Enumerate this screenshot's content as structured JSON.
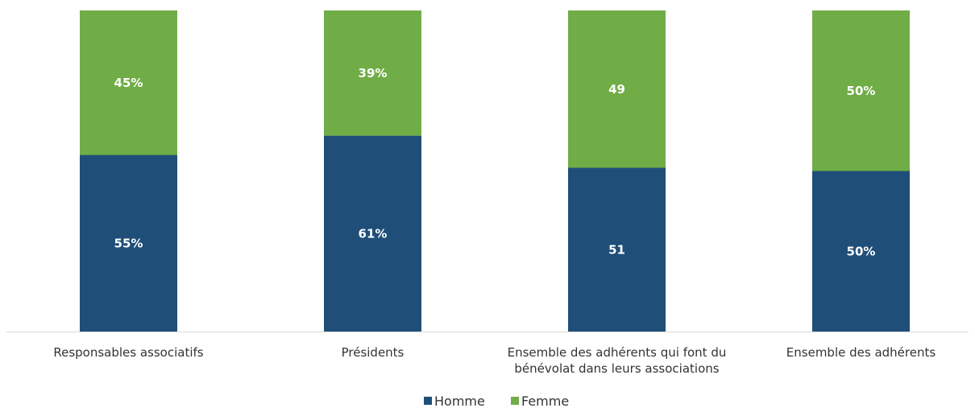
{
  "chart_data": {
    "type": "bar",
    "stacked": true,
    "percent_stacked": true,
    "categories": [
      [
        "Responsables associatifs"
      ],
      [
        "Présidents"
      ],
      [
        "Ensemble des adhérents qui font du",
        "bénévolat dans leurs associations"
      ],
      [
        "Ensemble des adhérents"
      ]
    ],
    "series": [
      {
        "name": "Homme",
        "color": "#1f4e79",
        "values": [
          55,
          61,
          51,
          50
        ],
        "labels": [
          "55%",
          "61%",
          "51",
          "50%"
        ]
      },
      {
        "name": "Femme",
        "color": "#70ad47",
        "values": [
          45,
          39,
          49,
          50
        ],
        "labels": [
          "45%",
          "39%",
          "49",
          "50%"
        ]
      }
    ],
    "ylim": [
      0,
      100
    ],
    "grid": false,
    "legend": "bottom-center"
  }
}
